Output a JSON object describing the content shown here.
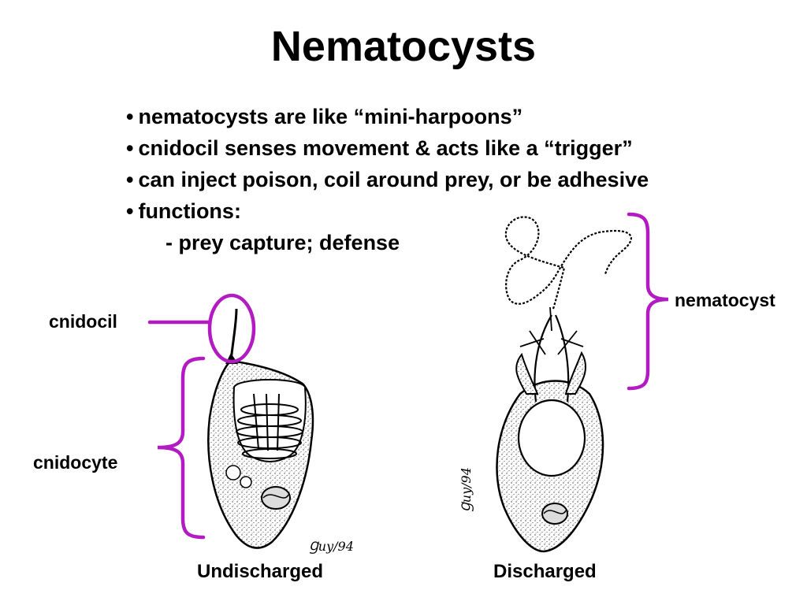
{
  "slide": {
    "title": "Nematocysts",
    "bullets": [
      "nematocysts are like “mini-harpoons”",
      "cnidocil senses movement & acts like a “trigger”",
      "can inject poison, coil around prey, or be adhesive",
      "functions:"
    ],
    "sub_bullet": "- prey capture; defense",
    "bullet_char": "•"
  },
  "labels": {
    "cnidocil": "cnidocil",
    "cnidocyte": "cnidocyte",
    "nematocyst": "nematocyst"
  },
  "captions": {
    "undischarged": "Undischarged",
    "discharged": "Discharged"
  },
  "signatures": {
    "left": "Ɡuy/94",
    "right": "Ɡuy/94"
  },
  "colors": {
    "accent": "#b31bc2",
    "ink": "#000000",
    "background": "#ffffff"
  }
}
